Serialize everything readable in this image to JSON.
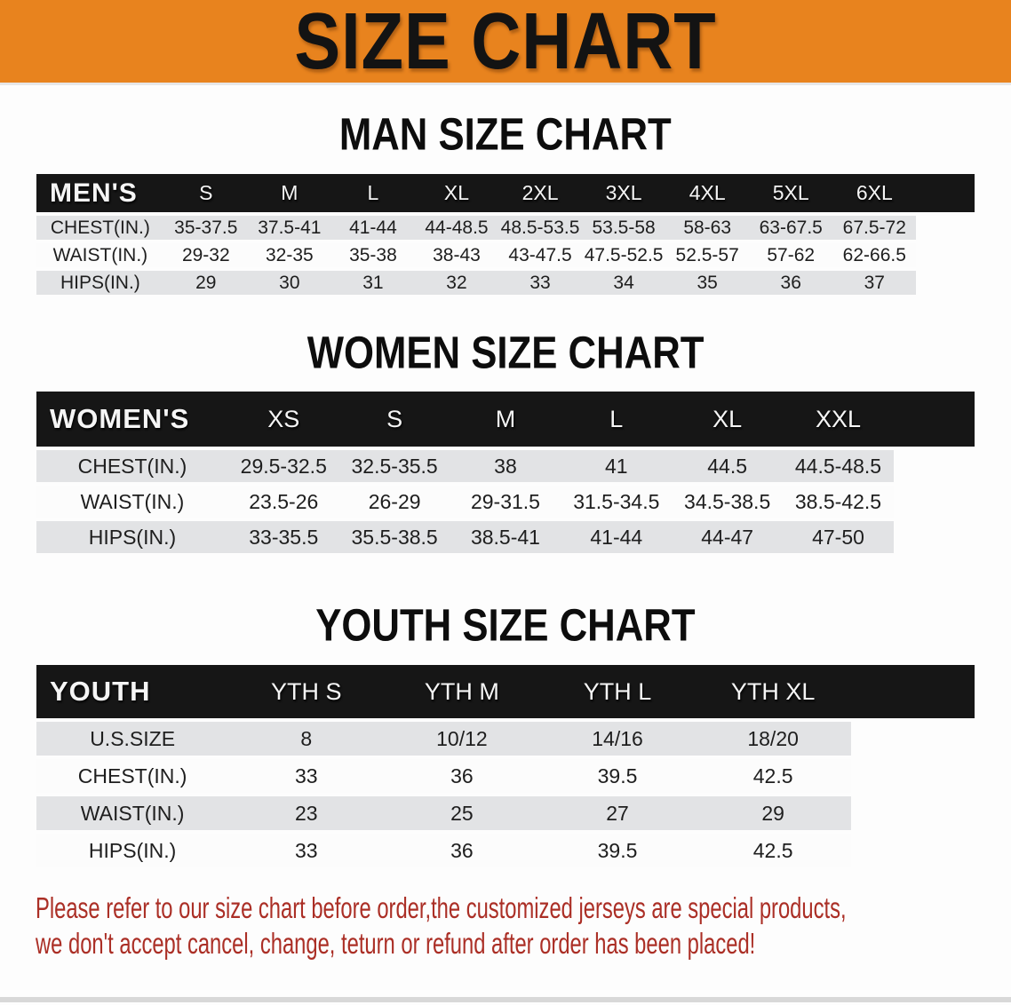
{
  "banner": {
    "title": "SIZE CHART"
  },
  "colors": {
    "banner_bg": "#E8831E",
    "header_bg": "#161616",
    "row_stripe": "#E2E3E5",
    "heading_color": "#0D0D0D",
    "disclaimer_color": "#AB2F26"
  },
  "men": {
    "heading": "MAN SIZE CHART",
    "label": "MEN'S",
    "sizes": [
      "S",
      "M",
      "L",
      "XL",
      "2XL",
      "3XL",
      "4XL",
      "5XL",
      "6XL"
    ],
    "rows": [
      {
        "label": "CHEST(IN.)",
        "values": [
          "35-37.5",
          "37.5-41",
          "41-44",
          "44-48.5",
          "48.5-53.5",
          "53.5-58",
          "58-63",
          "63-67.5",
          "67.5-72"
        ]
      },
      {
        "label": "WAIST(IN.)",
        "values": [
          "29-32",
          "32-35",
          "35-38",
          "38-43",
          "43-47.5",
          "47.5-52.5",
          "52.5-57",
          "57-62",
          "62-66.5"
        ]
      },
      {
        "label": "HIPS(IN.)",
        "values": [
          "29",
          "30",
          "31",
          "32",
          "33",
          "34",
          "35",
          "36",
          "37"
        ]
      }
    ]
  },
  "women": {
    "heading": "WOMEN SIZE CHART",
    "label": "WOMEN'S",
    "sizes": [
      "XS",
      "S",
      "M",
      "L",
      "XL",
      "XXL"
    ],
    "rows": [
      {
        "label": "CHEST(IN.)",
        "values": [
          "29.5-32.5",
          "32.5-35.5",
          "38",
          "41",
          "44.5",
          "44.5-48.5"
        ]
      },
      {
        "label": "WAIST(IN.)",
        "values": [
          "23.5-26",
          "26-29",
          "29-31.5",
          "31.5-34.5",
          "34.5-38.5",
          "38.5-42.5"
        ]
      },
      {
        "label": "HIPS(IN.)",
        "values": [
          "33-35.5",
          "35.5-38.5",
          "38.5-41",
          "41-44",
          "44-47",
          "47-50"
        ]
      }
    ]
  },
  "youth": {
    "heading": "YOUTH SIZE CHART",
    "label": "YOUTH",
    "sizes": [
      "YTH S",
      "YTH M",
      "YTH L",
      "YTH XL"
    ],
    "rows": [
      {
        "label": "U.S.SIZE",
        "values": [
          "8",
          "10/12",
          "14/16",
          "18/20"
        ]
      },
      {
        "label": "CHEST(IN.)",
        "values": [
          "33",
          "36",
          "39.5",
          "42.5"
        ]
      },
      {
        "label": "WAIST(IN.)",
        "values": [
          "23",
          "25",
          "27",
          "29"
        ]
      },
      {
        "label": "HIPS(IN.)",
        "values": [
          "33",
          "36",
          "39.5",
          "42.5"
        ]
      }
    ]
  },
  "disclaimer": {
    "line1": "Please refer to our size chart before order,the customized jerseys are special products,",
    "line2": "we don't accept cancel, change, teturn or refund after order has been placed!"
  }
}
